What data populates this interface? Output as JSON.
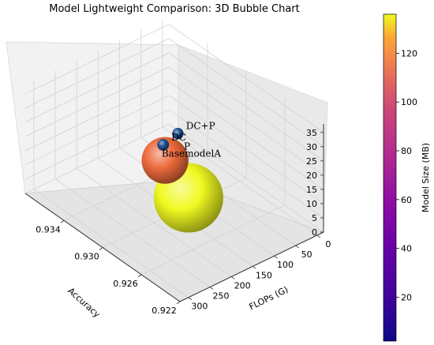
{
  "chart_data": {
    "type": "scatter",
    "subtype": "3d-bubble",
    "title": "Model Lightweight Comparison: 3D Bubble Chart",
    "axes": {
      "x": {
        "label": "FLOPs (G)",
        "ticks": [
          0,
          50,
          100,
          150,
          200,
          250,
          300
        ],
        "tick_labels": [
          "0",
          "50",
          "100",
          "150",
          "200",
          "250",
          "300"
        ],
        "range": [
          -15,
          320
        ]
      },
      "y": {
        "label": "Accuracy",
        "ticks": [
          0.922,
          0.926,
          0.93,
          0.934
        ],
        "tick_labels": [
          "0.922",
          "0.926",
          "0.930",
          "0.934"
        ],
        "range": [
          0.922,
          0.938
        ]
      },
      "z": {
        "label": "",
        "ticks": [
          0,
          5,
          10,
          15,
          20,
          25,
          30,
          35
        ],
        "tick_labels": [
          "0",
          "5",
          "10",
          "15",
          "20",
          "25",
          "30",
          "35"
        ],
        "range": [
          0,
          38
        ]
      }
    },
    "colorbar": {
      "label": "Model Size (MB)",
      "ticks": [
        20,
        40,
        60,
        80,
        100,
        120
      ],
      "tick_labels": [
        "20",
        "40",
        "60",
        "80",
        "100",
        "120"
      ],
      "range": [
        2,
        136
      ],
      "colormap": "plasma"
    },
    "points": [
      {
        "label": "BasemodelA",
        "flops": 300,
        "accuracy": 0.922,
        "params": 35,
        "size_mb": 136,
        "color": "#f0f921"
      },
      {
        "label": "P",
        "flops": 163,
        "accuracy": 0.9305,
        "params": 18,
        "size_mb": 100,
        "color": "#ec6a3b"
      },
      {
        "label": "DC",
        "flops": 48,
        "accuracy": 0.9358,
        "params": 2.5,
        "size_mb": 8,
        "color": "#1c4e8e"
      },
      {
        "label": "DC+P",
        "flops": 0,
        "accuracy": 0.9364,
        "params": 1.5,
        "size_mb": 5,
        "color": "#1c4e8e"
      }
    ],
    "grid": true,
    "legend": "none"
  }
}
